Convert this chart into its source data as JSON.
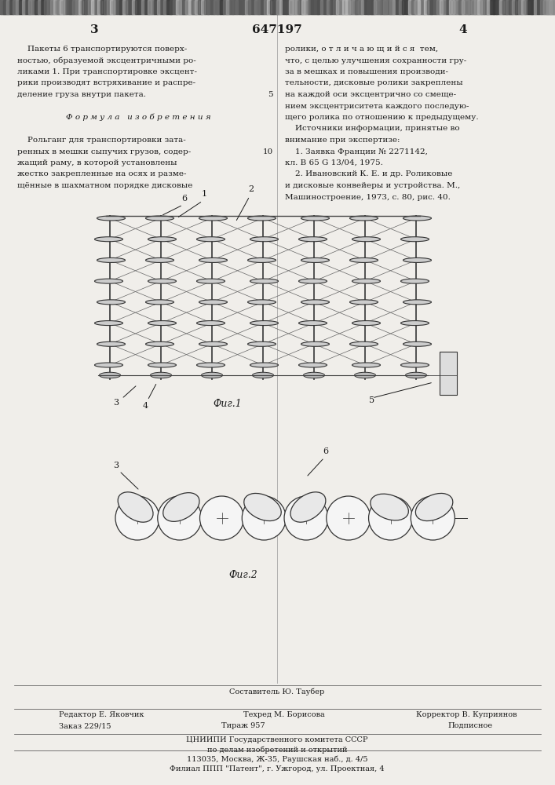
{
  "bg_color": "#f0eeea",
  "text_color": "#1a1a1a",
  "title_patent": "647197",
  "page_left_num": "3",
  "page_right_num": "4",
  "col_left_text": [
    "    Пакеты 6 транспортируются поверх-",
    "ностью, образуемой эксцентричными ро-",
    "ликами 1. При транспортировке эксцент-",
    "рики производят встряхивание и распре-",
    "деление груза внутри пакета.",
    "",
    "    Ф о р м у л а   и з о б р е т е н и я",
    "",
    "    Рольганг для транспортировки зата-",
    "ренных в мешки сыпучих грузов, содер-",
    "жащий раму, в которой установлены",
    "жестко закрепленные на осях и разме-",
    "щённые в шахматном порядке дисковые"
  ],
  "col_right_text": [
    "ролики, о т л и ч а ю щ и й с я  тем,",
    "что, с целью улучшения сохранности гру-",
    "за в мешках и повышения производи-",
    "тельности, дисковые ролики закреплены",
    "на каждой оси эксцентрично со смеще-",
    "нием эксцентриситета каждого последую-",
    "щего ролика по отношению к предыдущему.",
    "    Источники информации, принятые во",
    "внимание при экспертизе:",
    "    1. Заявка Франции № 2271142,",
    "кл. В 65 G 13/04, 1975.",
    "    2. Ивановский К. Е. и др. Роликовые",
    "и дисковые конвейеры и устройства. М.,",
    "Машиностроение, 1973, с. 80, рис. 40."
  ],
  "fig1_caption": "Фиг.1",
  "fig2_caption": "Фиг.2",
  "footer_line1": "Составитель Ю. Таубер",
  "footer_line2_left": "Редактор Е. Яковчик",
  "footer_line2_mid": "Техред М. Борисова",
  "footer_line2_right": "Корректор В. Куприянов",
  "footer_line3_left": "Заказ 229/15",
  "footer_line3_mid": "Тираж 957",
  "footer_line3_right": "Подписное",
  "footer_line4": "ЦНИИПИ Государственного комитета СССР",
  "footer_line5": "по делам изобретений и открытий",
  "footer_line6": "113035, Москва, Ж-35, Раушская наб., д. 4/5",
  "footer_line7": "Филиал ППП \"Патент\", г. Ужгород, ул. Проектная, 4"
}
